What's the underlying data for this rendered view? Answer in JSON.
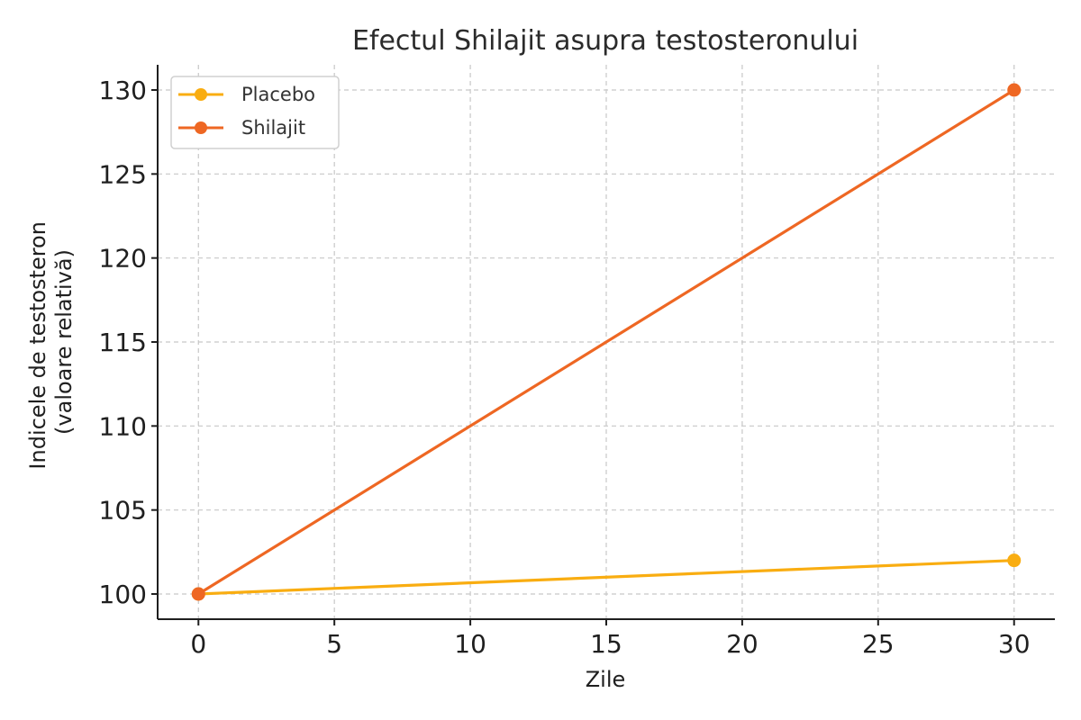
{
  "chart_data": {
    "type": "line",
    "title": "Efectul Shilajit asupra testosteronului",
    "xlabel": "Zile",
    "ylabel_lines": [
      "Indicele de testosteron",
      "(valoare relativă)"
    ],
    "xlim": [
      -1.5,
      31.5
    ],
    "ylim": [
      98.5,
      131.5
    ],
    "x_ticks": [
      0,
      5,
      10,
      15,
      20,
      25,
      30
    ],
    "y_ticks": [
      100,
      105,
      110,
      115,
      120,
      125,
      130
    ],
    "grid": true,
    "legend_position": "top-left",
    "series": [
      {
        "name": "Placebo",
        "color": "#f9ad11",
        "x": [
          0,
          30
        ],
        "y": [
          100,
          102
        ]
      },
      {
        "name": "Shilajit",
        "color": "#ee6723",
        "x": [
          0,
          30
        ],
        "y": [
          100,
          130
        ]
      }
    ]
  }
}
